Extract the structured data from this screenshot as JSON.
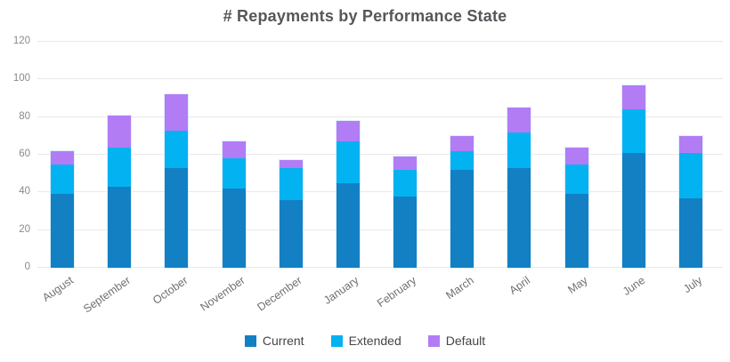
{
  "chart_data": {
    "type": "bar",
    "stacked": true,
    "title": "# Repayments by Performance State",
    "categories": [
      "August",
      "September",
      "October",
      "November",
      "December",
      "January",
      "February",
      "March",
      "April",
      "May",
      "June",
      "July"
    ],
    "series": [
      {
        "name": "Current",
        "color": "#1380c4",
        "values": [
          39,
          43,
          53,
          42,
          36,
          45,
          38,
          52,
          53,
          39,
          61,
          37
        ]
      },
      {
        "name": "Extended",
        "color": "#03b2f1",
        "values": [
          16,
          21,
          20,
          16,
          17,
          22,
          14,
          10,
          19,
          16,
          23,
          24
        ]
      },
      {
        "name": "Default",
        "color": "#b27cf5",
        "values": [
          7,
          17,
          19,
          9,
          4,
          11,
          7,
          8,
          13,
          9,
          13,
          9
        ]
      }
    ],
    "stack_totals": [
      62,
      81,
      92,
      67,
      57,
      78,
      59,
      70,
      85,
      64,
      97,
      70
    ],
    "y_ticks": [
      0,
      20,
      40,
      60,
      80,
      100,
      120
    ],
    "ylim": [
      0,
      120
    ],
    "xlabel": "",
    "ylabel": "",
    "grid": "horizontal",
    "legend_position": "bottom",
    "colors": {
      "title_text": "#56575b",
      "axis_text": "#8a8a8a",
      "x_axis_text": "#707070",
      "gridline": "#e9e9e9",
      "legend_text": "#454545"
    }
  }
}
